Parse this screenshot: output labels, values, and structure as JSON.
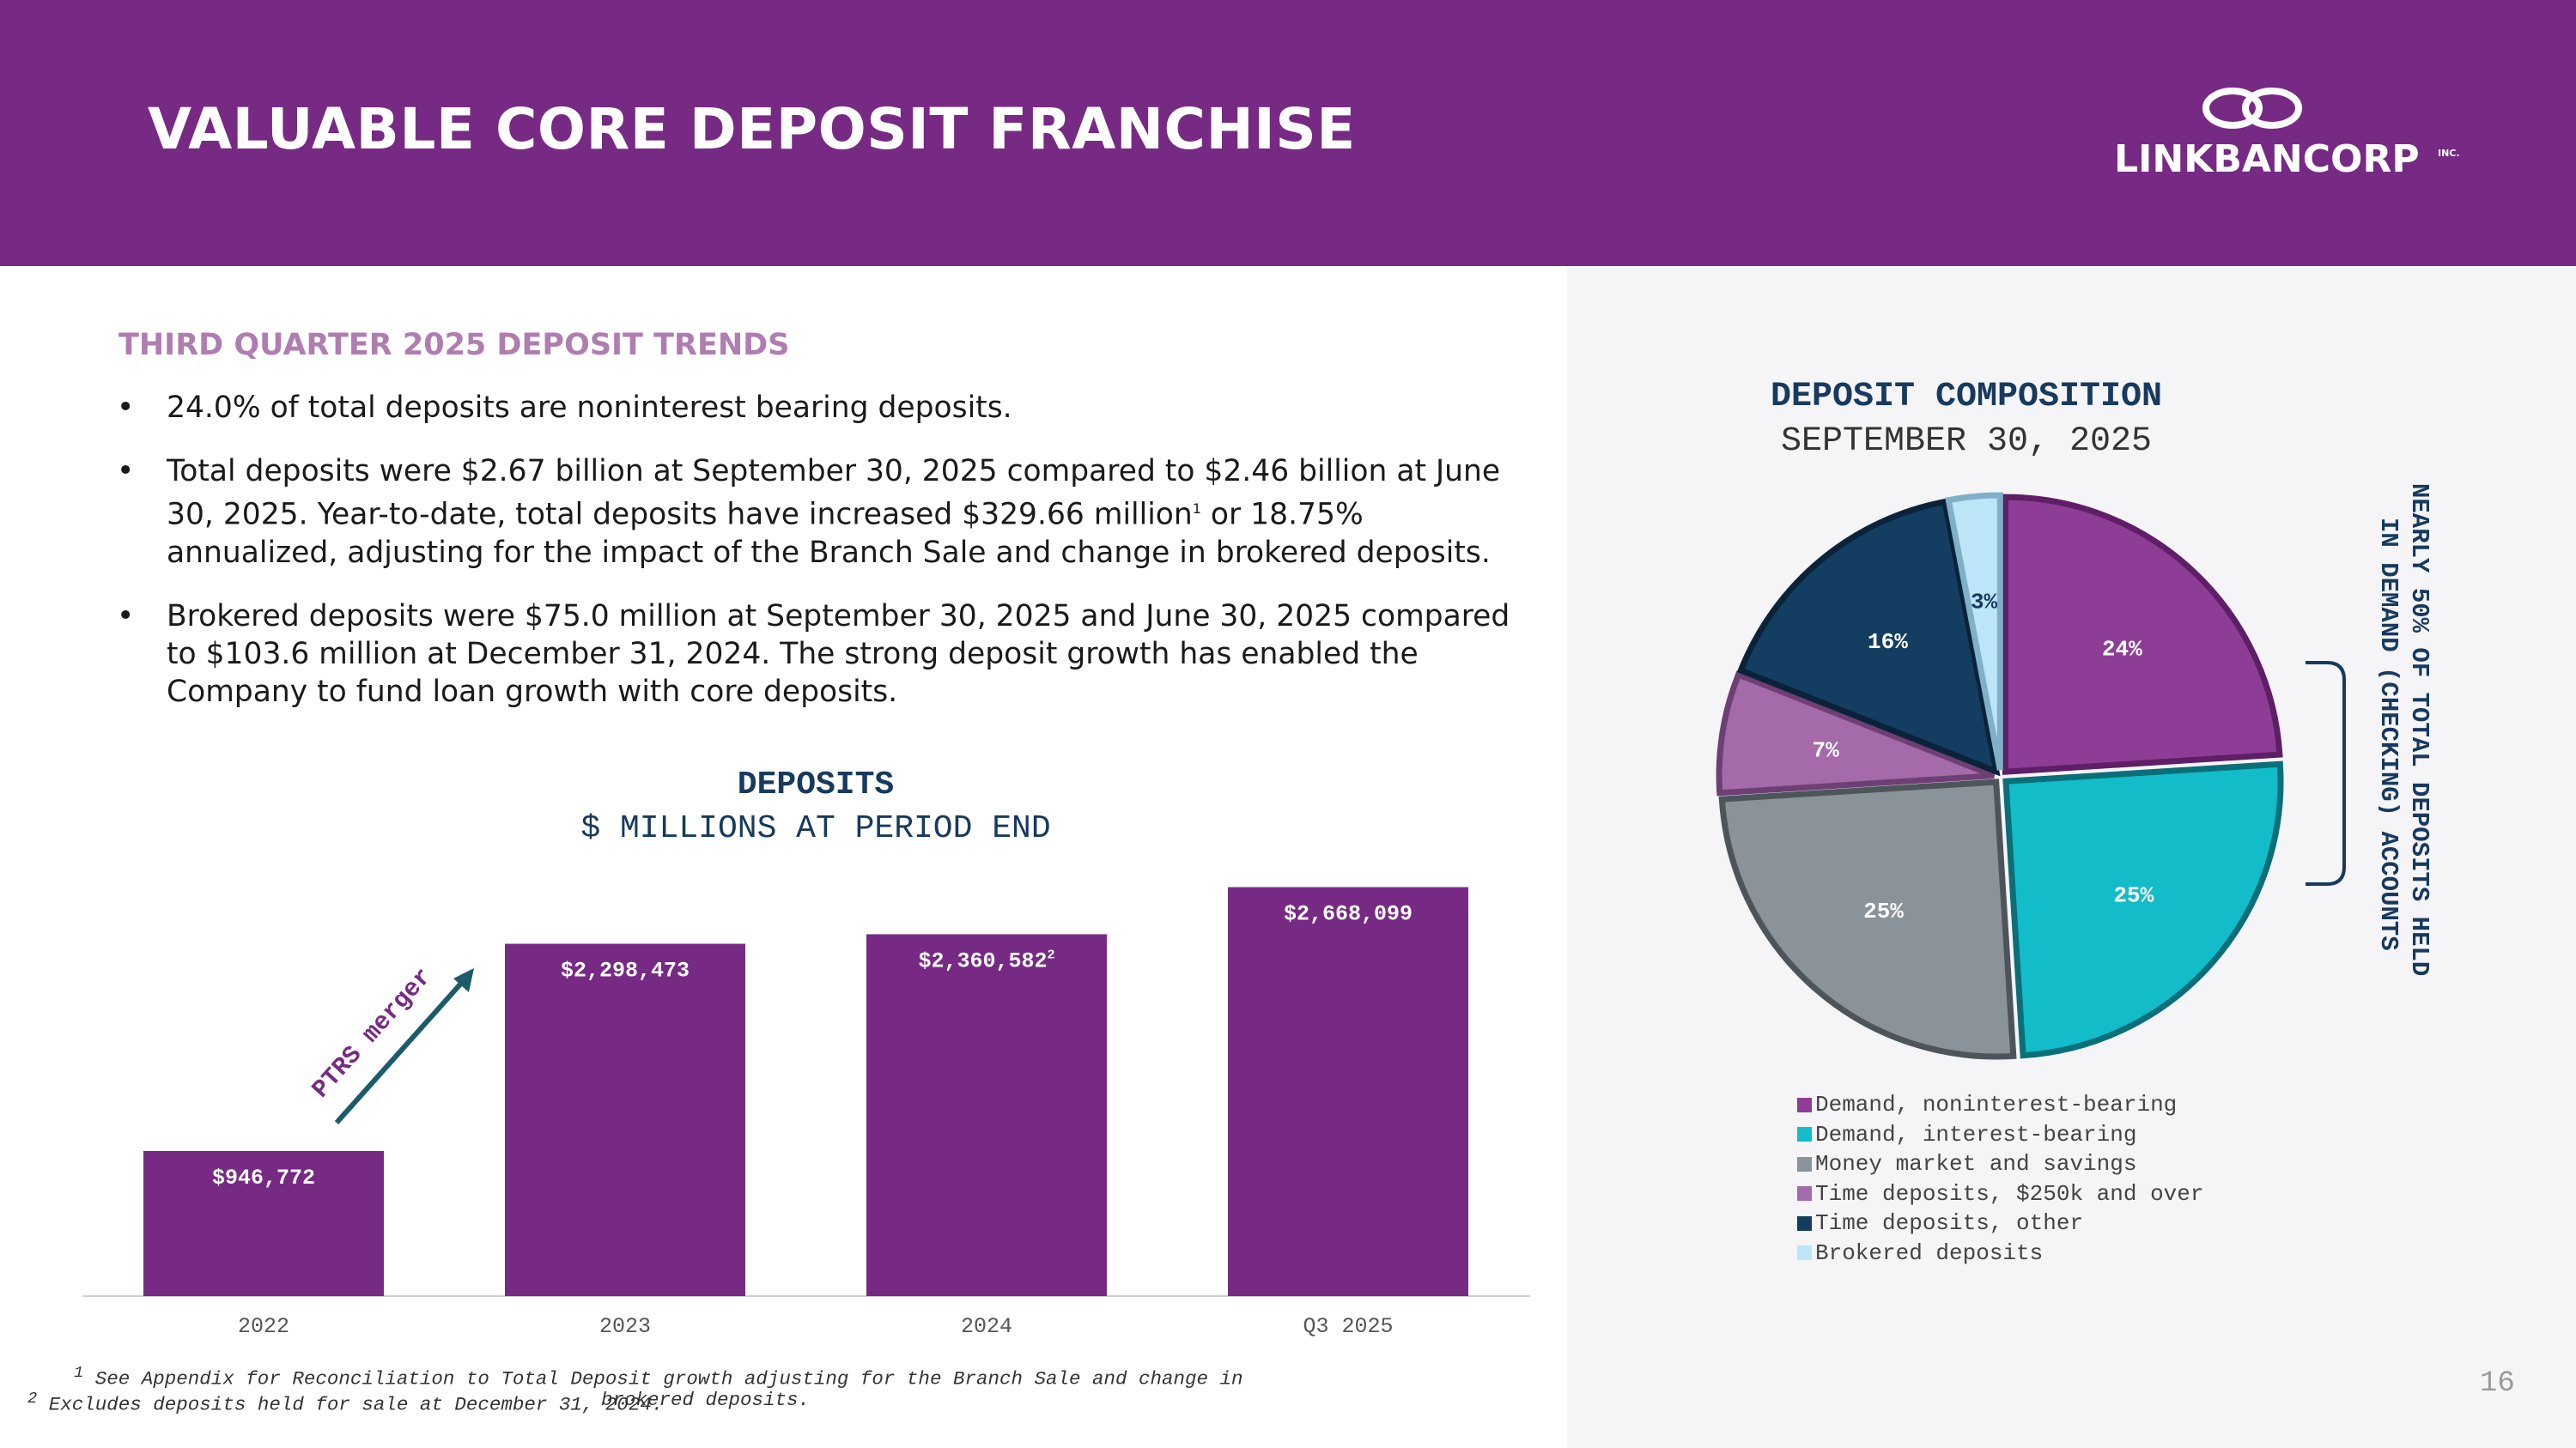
{
  "header": {
    "title": "VALUABLE CORE DEPOSIT FRANCHISE",
    "logo_text": "LINKBANCORP",
    "logo_inc": "INC.",
    "brand_color": "#772A84"
  },
  "trends": {
    "heading": "THIRD QUARTER 2025 DEPOSIT TRENDS",
    "bullet_symbol": "•",
    "bullet1": "24.0% of total deposits are noninterest bearing deposits.",
    "bullet2_a": "Total deposits were $2.67 billion at September 30, 2025 compared to $2.46 billion at June 30, 2025. Year-to-date, total deposits have increased $329.66 million",
    "bullet2_sup": "1",
    "bullet2_b": " or 18.75% annualized, adjusting for the impact of the Branch Sale and change in brokered deposits.",
    "bullet3": "Brokered deposits were $75.0 million at September 30, 2025 and June 30, 2025 compared to $103.6 million at December 31, 2024. The strong deposit growth has enabled the Company to fund loan growth with core deposits."
  },
  "chart_data": [
    {
      "type": "bar",
      "title": "DEPOSITS",
      "subtitle": "$ MILLIONS AT PERIOD END",
      "categories": [
        "2022",
        "2023",
        "2024",
        "Q3 2025"
      ],
      "values": [
        946772,
        2298473,
        2360582,
        2668099
      ],
      "data_labels": [
        "$946,772",
        "$2,298,473",
        "$2,360,582",
        "$2,668,099"
      ],
      "label_superscripts": [
        "",
        "",
        "2",
        ""
      ],
      "color": "#772A84",
      "ylim": [
        0,
        2800000
      ],
      "annotation": "PTRS merger",
      "grid": false
    },
    {
      "type": "pie",
      "title": "DEPOSIT COMPOSITION",
      "subtitle": "SEPTEMBER 30, 2025",
      "labels": [
        "Demand, noninterest-bearing",
        "Demand, interest-bearing",
        "Money market and savings",
        "Time deposits, $250k and over",
        "Time deposits, other",
        "Brokered deposits"
      ],
      "values": [
        24,
        25,
        25,
        7,
        16,
        3
      ],
      "data_labels": [
        "24%",
        "25%",
        "25%",
        "7%",
        "16%",
        "3%"
      ],
      "colors": [
        "#8E3D96",
        "#12BCC9",
        "#8A9399",
        "#A46AAA",
        "#133E62",
        "#BDE5F8"
      ],
      "legend_position": "bottom",
      "side_note_line1": "NEARLY 50% OF TOTAL DEPOSITS HELD",
      "side_note_line2": "IN DEMAND (CHECKING) ACCOUNTS"
    }
  ],
  "footnotes": {
    "note1_num": "1",
    "note1": "See Appendix for Reconciliation to Total Deposit growth adjusting for the Branch Sale and change in",
    "note1_cont": "brokered deposits.",
    "note2_num": "2",
    "note2": "Excludes deposits held for sale at December 31, 2024."
  },
  "page_number": "16"
}
